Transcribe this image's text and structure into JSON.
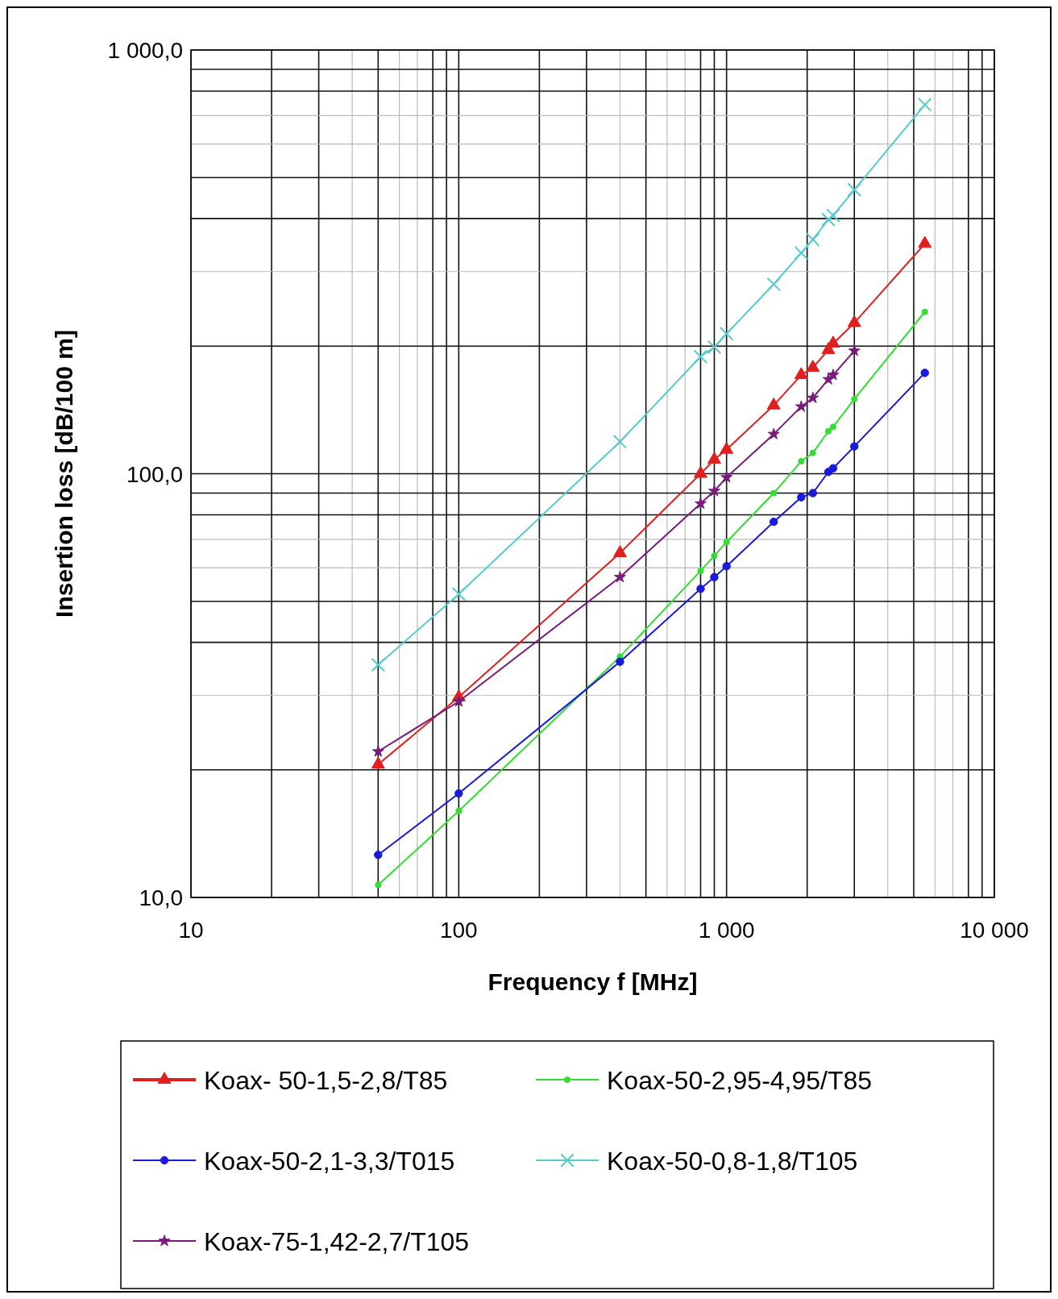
{
  "chart_data": {
    "type": "line",
    "xlabel": "Frequency f [MHz]",
    "ylabel": "Insertion loss [dB/100 m]",
    "log": "xy",
    "grid": true,
    "legend": "bottom",
    "line_style": "solid",
    "xlim": [
      10,
      10000
    ],
    "xticks": [
      10,
      100,
      {
        "value": 1000,
        "label": "1 000"
      },
      {
        "value": 10000,
        "label": "10 000"
      }
    ],
    "ylim": [
      10,
      1000
    ],
    "yticks": [
      {
        "value": 10,
        "label": "10,0"
      },
      {
        "value": 100,
        "label": "100,0"
      },
      {
        "value": 1000,
        "label": "1 000,0"
      }
    ],
    "x": [
      50,
      100,
      400,
      800,
      900,
      1000,
      1500,
      1900,
      2100,
      2400,
      2500,
      3000,
      5500
    ],
    "series": [
      {
        "name": "Koax- 50-1,5-2,8/T85",
        "color": "#e02020",
        "marker": "triangle",
        "values": [
          20.6,
          29.7,
          65,
          100,
          108,
          114,
          145,
          171,
          178,
          196,
          203,
          227,
          349
        ]
      },
      {
        "name": "Koax-50-2,95-4,95/T85",
        "color": "#33dd33",
        "marker": "circle",
        "values": [
          10.7,
          16,
          37,
          59,
          64,
          69,
          90,
          107,
          112,
          126,
          129,
          150,
          241
        ]
      },
      {
        "name": "Koax-50-2,1-3,3/T015",
        "color": "#1a1adb",
        "marker": "circle",
        "values": [
          12.6,
          17.6,
          36,
          53.5,
          57,
          60.5,
          77,
          88,
          90,
          101,
          103,
          116,
          173
        ]
      },
      {
        "name": "Koax-50-0,8-1,8/T105",
        "color": "#55cccc",
        "marker": "cross",
        "values": [
          35.4,
          52,
          119,
          189,
          199,
          214,
          280,
          332,
          357,
          398,
          407,
          468,
          743
        ]
      },
      {
        "name": "Koax-75-1,42-2,7/T105",
        "color": "#7a1a7a",
        "marker": "star",
        "values": [
          22.1,
          29,
          57,
          85,
          91,
          98,
          124,
          144,
          151,
          167,
          171,
          195,
          null
        ]
      }
    ]
  }
}
